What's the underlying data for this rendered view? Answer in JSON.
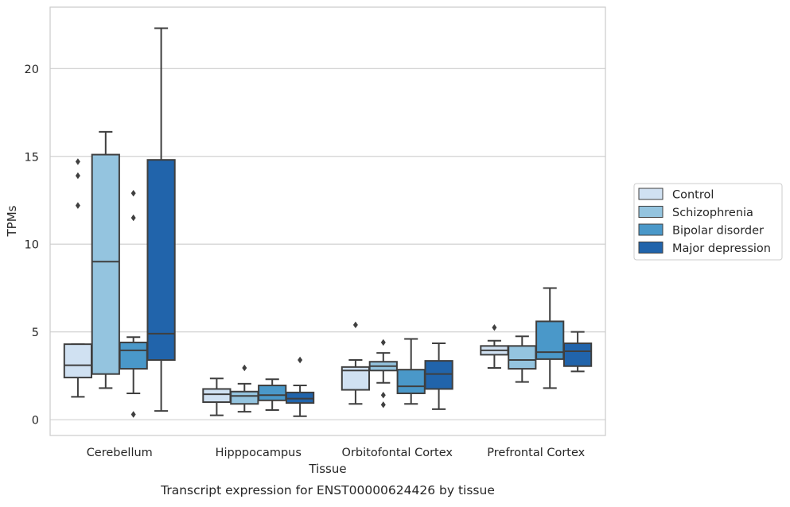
{
  "chart_data": {
    "type": "box",
    "title": "Transcript expression for ENST00000624426 by tissue",
    "xlabel": "Tissue",
    "ylabel": "TPMs",
    "ylim": [
      -0.9,
      23.5
    ],
    "yticks": [
      0,
      5,
      10,
      15,
      20
    ],
    "grid": "horizontal",
    "legend_position": "right",
    "categories": [
      "Cerebellum",
      "Hipppocampus",
      "Orbitofontal Cortex",
      "Prefrontal Cortex"
    ],
    "series": [
      {
        "name": "Control",
        "color": "#d0e1f2",
        "boxes": [
          {
            "whislo": 1.3,
            "q1": 2.4,
            "med": 3.1,
            "q3": 4.3,
            "whishi": 4.3,
            "fliers": [
              12.2,
              13.9,
              14.7
            ]
          },
          {
            "whislo": 0.25,
            "q1": 1.0,
            "med": 1.45,
            "q3": 1.75,
            "whishi": 2.35,
            "fliers": []
          },
          {
            "whislo": 0.9,
            "q1": 1.7,
            "med": 2.8,
            "q3": 3.0,
            "whishi": 3.4,
            "fliers": [
              5.4
            ]
          },
          {
            "whislo": 2.95,
            "q1": 3.7,
            "med": 3.95,
            "q3": 4.2,
            "whishi": 4.5,
            "fliers": [
              5.25
            ]
          }
        ]
      },
      {
        "name": "Schizophrenia",
        "color": "#94c4df",
        "boxes": [
          {
            "whislo": 1.8,
            "q1": 2.6,
            "med": 9.0,
            "q3": 15.1,
            "whishi": 16.4,
            "fliers": []
          },
          {
            "whislo": 0.45,
            "q1": 0.9,
            "med": 1.35,
            "q3": 1.6,
            "whishi": 2.05,
            "fliers": [
              2.95
            ]
          },
          {
            "whislo": 2.1,
            "q1": 2.8,
            "med": 3.05,
            "q3": 3.3,
            "whishi": 3.8,
            "fliers": [
              0.85,
              1.4,
              4.4
            ]
          },
          {
            "whislo": 2.15,
            "q1": 2.9,
            "med": 3.4,
            "q3": 4.2,
            "whishi": 4.75,
            "fliers": []
          }
        ]
      },
      {
        "name": "Bipolar disorder",
        "color": "#4a98c9",
        "boxes": [
          {
            "whislo": 1.5,
            "q1": 2.9,
            "med": 3.95,
            "q3": 4.4,
            "whishi": 4.7,
            "fliers": [
              0.3,
              11.5,
              12.9
            ]
          },
          {
            "whislo": 0.55,
            "q1": 1.1,
            "med": 1.4,
            "q3": 1.95,
            "whishi": 2.3,
            "fliers": []
          },
          {
            "whislo": 0.9,
            "q1": 1.5,
            "med": 1.9,
            "q3": 2.85,
            "whishi": 4.6,
            "fliers": []
          },
          {
            "whislo": 1.8,
            "q1": 3.45,
            "med": 3.85,
            "q3": 5.6,
            "whishi": 7.5,
            "fliers": []
          }
        ]
      },
      {
        "name": "Major depression",
        "color": "#2164ab",
        "boxes": [
          {
            "whislo": 0.5,
            "q1": 3.4,
            "med": 4.9,
            "q3": 14.8,
            "whishi": 22.3,
            "fliers": []
          },
          {
            "whislo": 0.2,
            "q1": 0.95,
            "med": 1.2,
            "q3": 1.55,
            "whishi": 1.95,
            "fliers": [
              3.4
            ]
          },
          {
            "whislo": 0.6,
            "q1": 1.75,
            "med": 2.6,
            "q3": 3.35,
            "whishi": 4.35,
            "fliers": []
          },
          {
            "whislo": 2.75,
            "q1": 3.05,
            "med": 3.9,
            "q3": 4.35,
            "whishi": 5.0,
            "fliers": []
          }
        ]
      }
    ]
  }
}
